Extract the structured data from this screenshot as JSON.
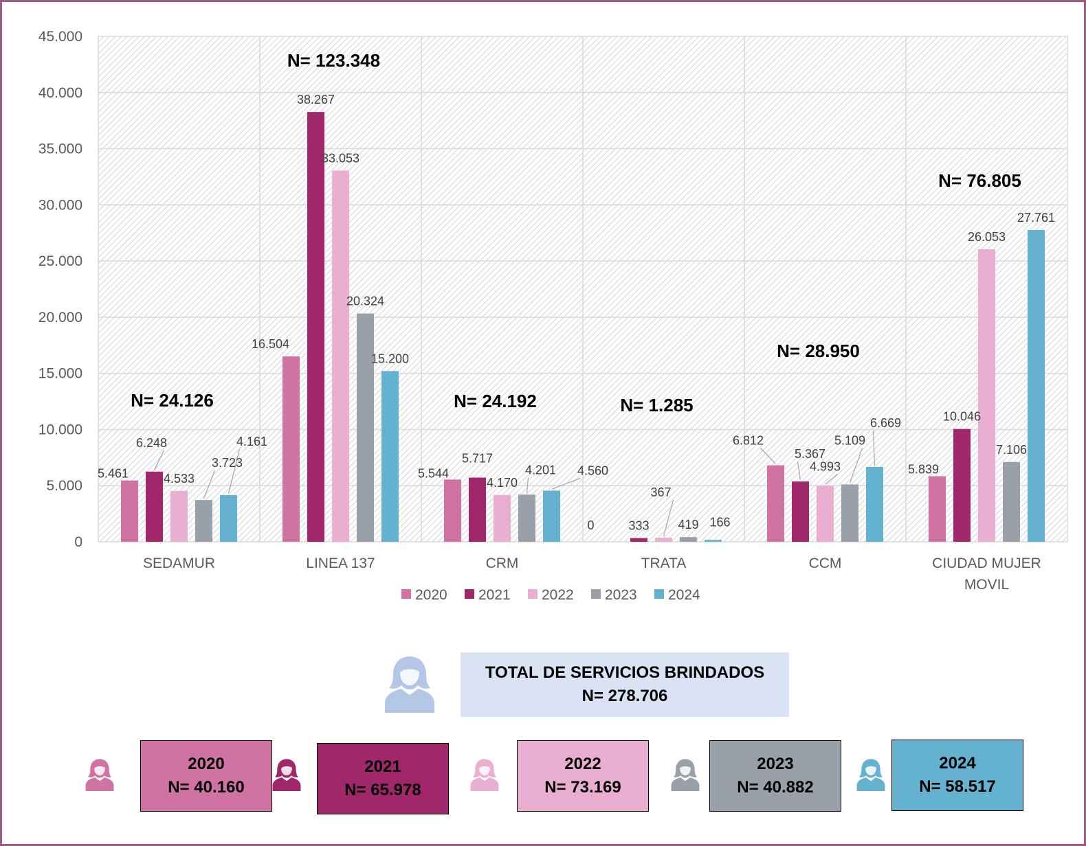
{
  "chart_data": {
    "type": "bar",
    "categories": [
      "SEDAMUR",
      "LINEA 137",
      "CRM",
      "TRATA",
      "CCM",
      "CIUDAD MUJER MOVIL"
    ],
    "category_lines": [
      [
        "SEDAMUR"
      ],
      [
        "LINEA 137"
      ],
      [
        "CRM"
      ],
      [
        "TRATA"
      ],
      [
        "CCM"
      ],
      [
        "CIUDAD MUJER",
        "MOVIL"
      ]
    ],
    "series": [
      {
        "name": "2020",
        "color": "#d172a4",
        "values": [
          5461,
          16504,
          5544,
          0,
          6812,
          5839
        ],
        "labels": [
          "5.461",
          "16.504",
          "5.544",
          "0",
          "6.812",
          "5.839"
        ]
      },
      {
        "name": "2021",
        "color": "#a0286a",
        "values": [
          6248,
          38267,
          5717,
          333,
          5367,
          10046
        ],
        "labels": [
          "6.248",
          "38.267",
          "5.717",
          "333",
          "5.367",
          "10.046"
        ]
      },
      {
        "name": "2022",
        "color": "#eaafd0",
        "values": [
          4533,
          33053,
          4170,
          367,
          4993,
          26053
        ],
        "labels": [
          "4.533",
          "33.053",
          "4.170",
          "367",
          "4.993",
          "26.053"
        ]
      },
      {
        "name": "2023",
        "color": "#99a0a8",
        "values": [
          3723,
          20324,
          4201,
          419,
          5109,
          7106
        ],
        "labels": [
          "3.723",
          "20.324",
          "4.201",
          "419",
          "5.109",
          "7.106"
        ]
      },
      {
        "name": "2024",
        "color": "#65b2d0",
        "values": [
          4161,
          15200,
          4560,
          166,
          6669,
          27761
        ],
        "labels": [
          "4.161",
          "15.200",
          "4.560",
          "166",
          "6.669",
          "27.761"
        ]
      }
    ],
    "ylim": [
      0,
      45000
    ],
    "yticks": [
      0,
      5000,
      10000,
      15000,
      20000,
      25000,
      30000,
      35000,
      40000,
      45000
    ],
    "ytick_labels": [
      "0",
      "5.000",
      "10.000",
      "15.000",
      "20.000",
      "25.000",
      "30.000",
      "35.000",
      "40.000",
      "45.000"
    ],
    "category_totals": [
      "N= 24.126",
      "N= 123.348",
      "N= 24.192",
      "N= 1.285",
      "N= 28.950",
      "N= 76.805"
    ],
    "grid": true,
    "legend_position": "bottom"
  },
  "summary": {
    "title": "TOTAL DE SERVICIOS BRINDADOS",
    "total": "N= 278.706",
    "icon": "woman-icon",
    "icon_color": "#b4c7e7",
    "box_color": "#dae3f3"
  },
  "year_totals": [
    {
      "year": "2020",
      "total": "N= 40.160",
      "color": "#d172a4",
      "icon": "woman-icon"
    },
    {
      "year": "2021",
      "total": "N= 65.978",
      "color": "#a0286a",
      "icon": "woman-icon"
    },
    {
      "year": "2022",
      "total": "N= 73.169",
      "color": "#eaafd0",
      "icon": "woman-icon"
    },
    {
      "year": "2023",
      "total": "N= 40.882",
      "color": "#99a0a8",
      "icon": "woman-icon"
    },
    {
      "year": "2024",
      "total": "N= 58.517",
      "color": "#65b2d0",
      "icon": "woman-icon"
    }
  ]
}
